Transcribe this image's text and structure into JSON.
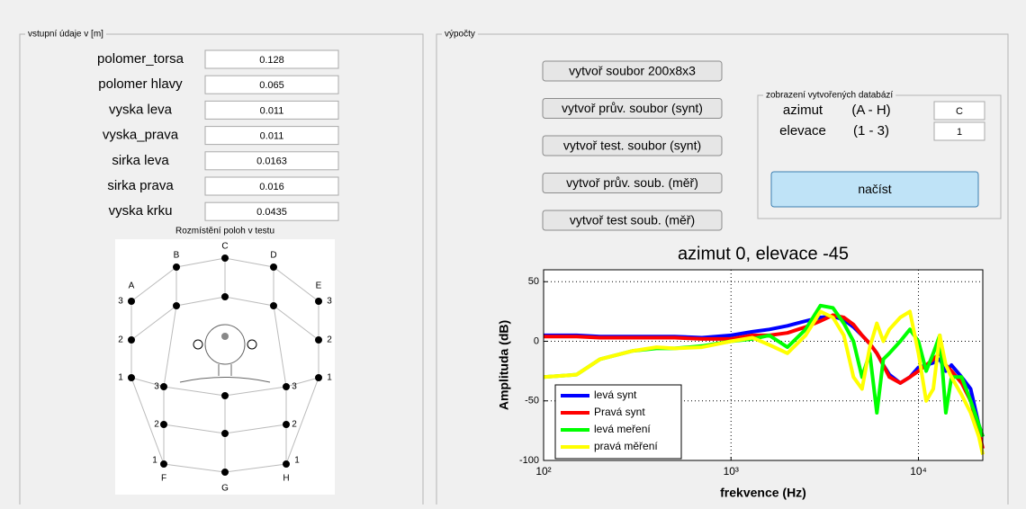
{
  "left_panel": {
    "title": "vstupní údaje v [m]",
    "fields": [
      {
        "label": "polomer_torsa",
        "value": "0.128"
      },
      {
        "label": "polomer hlavy",
        "value": "0.065"
      },
      {
        "label": "vyska leva",
        "value": "0.011"
      },
      {
        "label": "vyska_prava",
        "value": "0.011"
      },
      {
        "label": "sirka leva",
        "value": "0.0163"
      },
      {
        "label": "sirka prava",
        "value": "0.016"
      },
      {
        "label": "vyska krku",
        "value": "0.0435"
      }
    ],
    "diagram": {
      "title": "Rozmístění poloh v testu",
      "azimuths": [
        "A",
        "B",
        "C",
        "D",
        "E",
        "F",
        "G",
        "H"
      ],
      "elevations": [
        "1",
        "2",
        "3"
      ]
    }
  },
  "right_panel": {
    "title": "výpočty",
    "buttons": [
      "vytvoř soubor 200x8x3",
      "vytvoř prův. soubor (synt)",
      "vytvoř test. soubor (synt)",
      "vytvoř prův. soub. (měř)",
      "vytvoř test soub. (měř)"
    ],
    "database_panel": {
      "title": "zobrazení vytvořených databází",
      "azimuth": {
        "label": "azimut",
        "range": "(A - H)",
        "value": "C"
      },
      "elevation": {
        "label": "elevace",
        "range": "(1 - 3)",
        "value": "1"
      },
      "button": "načíst"
    }
  },
  "chart_data": {
    "type": "line",
    "title": "azimut 0, elevace -45",
    "xlabel": "frekvence (Hz)",
    "ylabel": "Amplituda (dB)",
    "xscale": "log",
    "grid": true,
    "legend": "lower left",
    "xlim": [
      100,
      22050
    ],
    "ylim": [
      -100,
      60
    ],
    "xticks": [
      {
        "value": 100,
        "label": "10²"
      },
      {
        "value": 1000,
        "label": "10³"
      },
      {
        "value": 10000,
        "label": "10⁴"
      }
    ],
    "yticks": [
      -100,
      -50,
      0,
      50
    ],
    "x": [
      100,
      150,
      200,
      300,
      400,
      500,
      700,
      1000,
      1300,
      1600,
      2000,
      2500,
      3000,
      3500,
      4000,
      4500,
      5000,
      5500,
      6000,
      6500,
      7000,
      8000,
      9000,
      10000,
      11000,
      12000,
      13000,
      14000,
      15000,
      17000,
      19000,
      21000,
      22050
    ],
    "series": [
      {
        "name": "levá synt",
        "color": "#0000ff",
        "values": [
          5,
          5,
          4,
          4,
          4,
          4,
          3,
          5,
          8,
          10,
          13,
          17,
          20,
          21,
          18,
          12,
          5,
          -2,
          -10,
          -20,
          -28,
          -35,
          -30,
          -22,
          -20,
          -18,
          -15,
          -25,
          -20,
          -30,
          -40,
          -70,
          -80
        ]
      },
      {
        "name": "Pravá synt",
        "color": "#ff0000",
        "values": [
          4,
          4,
          3,
          3,
          3,
          3,
          2,
          2,
          5,
          5,
          7,
          12,
          17,
          22,
          20,
          14,
          5,
          -2,
          -10,
          -20,
          -30,
          -35,
          -30,
          -25,
          -20,
          -15,
          -10,
          -20,
          -25,
          -35,
          -50,
          -75,
          -90
        ]
      },
      {
        "name": "levá meření",
        "color": "#00ff00",
        "values": [
          -30,
          -28,
          -15,
          -8,
          -6,
          -6,
          -4,
          0,
          2,
          5,
          -5,
          10,
          30,
          28,
          15,
          0,
          -30,
          -10,
          -60,
          -15,
          -10,
          0,
          10,
          0,
          -25,
          -10,
          5,
          -60,
          -30,
          -30,
          -50,
          -70,
          -80
        ]
      },
      {
        "name": "pravá měření",
        "color": "#ffff00",
        "values": [
          -30,
          -28,
          -15,
          -8,
          -5,
          -6,
          -5,
          0,
          3,
          -3,
          -10,
          5,
          25,
          20,
          5,
          -30,
          -40,
          -5,
          15,
          0,
          10,
          20,
          25,
          -10,
          -50,
          -40,
          5,
          -20,
          -30,
          -45,
          -60,
          -80,
          -95
        ]
      }
    ]
  }
}
